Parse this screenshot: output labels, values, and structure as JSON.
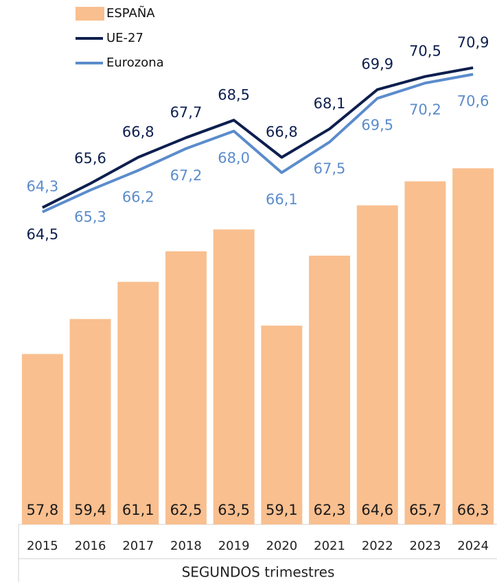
{
  "chart_data": {
    "type": "bar",
    "x_label": "SEGUNDOS trimestres",
    "categories": [
      "2015",
      "2016",
      "2017",
      "2018",
      "2019",
      "2020",
      "2021",
      "2022",
      "2023",
      "2024"
    ],
    "ylim": [
      50,
      74
    ],
    "legend": "top-left",
    "series": [
      {
        "name": "ESPAÑA",
        "type": "bar",
        "color": "#f9bf8f",
        "values": [
          57.8,
          59.4,
          61.1,
          62.5,
          63.5,
          59.1,
          62.3,
          64.6,
          65.7,
          66.3
        ],
        "value_labels": [
          "57,8",
          "59,4",
          "61,1",
          "62,5",
          "63,5",
          "59,1",
          "62,3",
          "64,6",
          "65,7",
          "66,3"
        ]
      },
      {
        "name": "UE-27",
        "type": "line",
        "color": "#0d1f4e",
        "values": [
          64.5,
          65.6,
          66.8,
          67.7,
          68.5,
          66.8,
          68.1,
          69.9,
          70.5,
          70.9
        ],
        "value_labels": [
          "64,5",
          "65,6",
          "66,8",
          "67,7",
          "68,5",
          "66,8",
          "68,1",
          "69,9",
          "70,5",
          "70,9"
        ]
      },
      {
        "name": "Eurozona",
        "type": "line",
        "color": "#5b8ccc",
        "values": [
          64.3,
          65.3,
          66.2,
          67.2,
          68.0,
          66.1,
          67.5,
          69.5,
          70.2,
          70.6
        ],
        "value_labels": [
          "64,3",
          "65,3",
          "66,2",
          "67,2",
          "68,0",
          "66,1",
          "67,5",
          "69,5",
          "70,2",
          "70,6"
        ]
      }
    ]
  }
}
